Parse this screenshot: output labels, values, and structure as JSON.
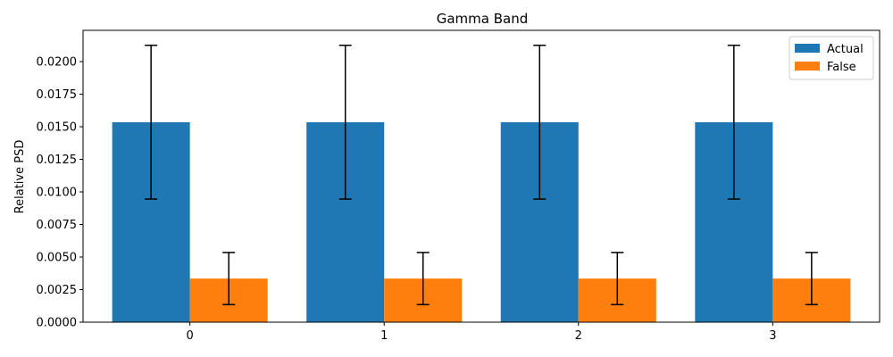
{
  "chart_data": {
    "type": "bar",
    "title": "Gamma Band",
    "xlabel": "",
    "ylabel": "Relative PSD",
    "categories": [
      "0",
      "1",
      "2",
      "3"
    ],
    "ylim": [
      0,
      0.0224
    ],
    "yticks": [
      "0.0000",
      "0.0025",
      "0.0050",
      "0.0075",
      "0.0100",
      "0.0125",
      "0.0150",
      "0.0175",
      "0.0200"
    ],
    "yticks_values": [
      0,
      0.0025,
      0.005,
      0.0075,
      0.01,
      0.0125,
      0.015,
      0.0175,
      0.02
    ],
    "series": [
      {
        "name": "Actual",
        "color": "#1f77b4",
        "values": [
          0.01535,
          0.01535,
          0.01535,
          0.01535
        ],
        "error": [
          0.0059,
          0.0059,
          0.0059,
          0.0059
        ]
      },
      {
        "name": "False",
        "color": "#ff7f0e",
        "values": [
          0.00335,
          0.00335,
          0.00335,
          0.00335
        ],
        "error": [
          0.002,
          0.002,
          0.002,
          0.002
        ]
      }
    ],
    "legend_position": "top-right",
    "grid": false
  }
}
